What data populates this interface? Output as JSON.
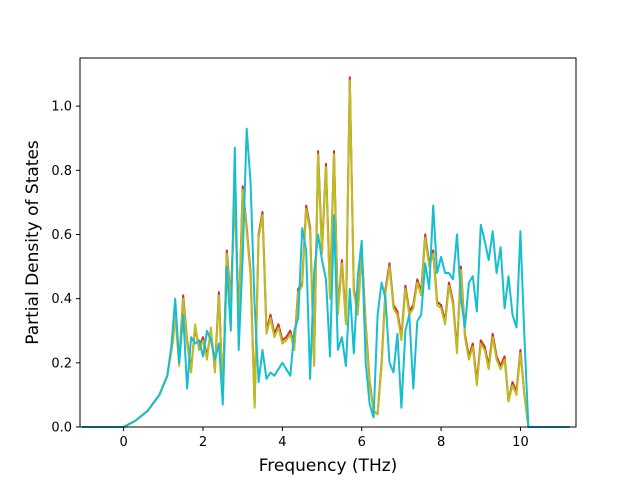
{
  "chart_data": {
    "type": "line",
    "title": "",
    "xlabel": "Frequency (THz)",
    "ylabel": "Partial Density of States",
    "xlim": [
      -1.1,
      11.4
    ],
    "ylim": [
      0.0,
      1.15
    ],
    "xticks": [
      0,
      2,
      4,
      6,
      8,
      10
    ],
    "xtick_labels": [
      "0",
      "2",
      "4",
      "6",
      "8",
      "10"
    ],
    "yticks": [
      0.0,
      0.2,
      0.4,
      0.6,
      0.8,
      1.0
    ],
    "ytick_labels": [
      "0.0",
      "0.2",
      "0.4",
      "0.6",
      "0.8",
      "1.0"
    ],
    "grid": false,
    "legend": "none",
    "series": [
      {
        "color": "#d62728",
        "x": [
          -1.05,
          0.0,
          0.3,
          0.6,
          0.9,
          1.1,
          1.25,
          1.3,
          1.4,
          1.5,
          1.6,
          1.7,
          1.8,
          1.9,
          2.0,
          2.1,
          2.2,
          2.3,
          2.4,
          2.5,
          2.6,
          2.7,
          2.8,
          2.9,
          3.0,
          3.1,
          3.2,
          3.3,
          3.4,
          3.5,
          3.6,
          3.7,
          3.8,
          3.9,
          4.0,
          4.1,
          4.2,
          4.3,
          4.4,
          4.5,
          4.6,
          4.7,
          4.8,
          4.9,
          5.0,
          5.1,
          5.2,
          5.3,
          5.4,
          5.5,
          5.6,
          5.65,
          5.7,
          5.8,
          5.9,
          6.0,
          6.1,
          6.2,
          6.3,
          6.4,
          6.5,
          6.6,
          6.7,
          6.8,
          6.9,
          7.0,
          7.1,
          7.2,
          7.3,
          7.4,
          7.5,
          7.6,
          7.7,
          7.8,
          7.9,
          8.0,
          8.1,
          8.2,
          8.3,
          8.4,
          8.5,
          8.6,
          8.7,
          8.8,
          8.9,
          9.0,
          9.1,
          9.2,
          9.3,
          9.4,
          9.5,
          9.6,
          9.7,
          9.8,
          9.9,
          10.0,
          10.1,
          10.2,
          11.25
        ],
        "y": [
          0.0,
          0.0,
          0.02,
          0.05,
          0.1,
          0.16,
          0.28,
          0.36,
          0.2,
          0.41,
          0.27,
          0.18,
          0.31,
          0.25,
          0.28,
          0.22,
          0.3,
          0.18,
          0.42,
          0.1,
          0.55,
          0.4,
          0.73,
          0.33,
          0.75,
          0.62,
          0.48,
          0.07,
          0.6,
          0.67,
          0.3,
          0.35,
          0.29,
          0.32,
          0.27,
          0.28,
          0.3,
          0.25,
          0.43,
          0.45,
          0.69,
          0.62,
          0.2,
          0.86,
          0.55,
          0.82,
          0.41,
          0.86,
          0.36,
          0.52,
          0.33,
          0.7,
          1.09,
          0.43,
          0.36,
          0.55,
          0.32,
          0.14,
          0.05,
          0.04,
          0.2,
          0.43,
          0.51,
          0.38,
          0.36,
          0.28,
          0.44,
          0.36,
          0.38,
          0.46,
          0.42,
          0.6,
          0.51,
          0.55,
          0.39,
          0.38,
          0.33,
          0.45,
          0.39,
          0.24,
          0.5,
          0.29,
          0.22,
          0.26,
          0.14,
          0.27,
          0.25,
          0.19,
          0.29,
          0.22,
          0.19,
          0.22,
          0.08,
          0.14,
          0.11,
          0.24,
          0.1,
          0.0,
          0.0
        ]
      },
      {
        "color": "#bcbd22",
        "x": [
          -1.05,
          0.0,
          0.3,
          0.6,
          0.9,
          1.1,
          1.25,
          1.3,
          1.4,
          1.5,
          1.6,
          1.7,
          1.8,
          1.9,
          2.0,
          2.1,
          2.2,
          2.3,
          2.4,
          2.5,
          2.6,
          2.7,
          2.8,
          2.9,
          3.0,
          3.1,
          3.2,
          3.3,
          3.4,
          3.5,
          3.6,
          3.7,
          3.8,
          3.9,
          4.0,
          4.1,
          4.2,
          4.3,
          4.4,
          4.5,
          4.6,
          4.7,
          4.8,
          4.9,
          5.0,
          5.1,
          5.2,
          5.3,
          5.4,
          5.5,
          5.6,
          5.65,
          5.7,
          5.8,
          5.9,
          6.0,
          6.1,
          6.2,
          6.3,
          6.4,
          6.5,
          6.6,
          6.7,
          6.8,
          6.9,
          7.0,
          7.1,
          7.2,
          7.3,
          7.4,
          7.5,
          7.6,
          7.7,
          7.8,
          7.9,
          8.0,
          8.1,
          8.2,
          8.3,
          8.4,
          8.5,
          8.6,
          8.7,
          8.8,
          8.9,
          9.0,
          9.1,
          9.2,
          9.3,
          9.4,
          9.5,
          9.6,
          9.7,
          9.8,
          9.9,
          10.0,
          10.1,
          10.2,
          11.25
        ],
        "y": [
          0.0,
          0.0,
          0.02,
          0.05,
          0.1,
          0.16,
          0.27,
          0.35,
          0.19,
          0.4,
          0.26,
          0.17,
          0.32,
          0.24,
          0.27,
          0.21,
          0.31,
          0.17,
          0.41,
          0.1,
          0.54,
          0.39,
          0.72,
          0.32,
          0.74,
          0.61,
          0.47,
          0.06,
          0.59,
          0.66,
          0.29,
          0.34,
          0.28,
          0.31,
          0.26,
          0.27,
          0.29,
          0.24,
          0.42,
          0.44,
          0.68,
          0.61,
          0.19,
          0.85,
          0.54,
          0.81,
          0.4,
          0.85,
          0.35,
          0.51,
          0.32,
          0.69,
          1.08,
          0.42,
          0.35,
          0.54,
          0.31,
          0.13,
          0.05,
          0.04,
          0.19,
          0.42,
          0.5,
          0.37,
          0.35,
          0.27,
          0.43,
          0.35,
          0.37,
          0.45,
          0.41,
          0.59,
          0.5,
          0.54,
          0.38,
          0.37,
          0.32,
          0.44,
          0.38,
          0.23,
          0.49,
          0.28,
          0.21,
          0.25,
          0.13,
          0.26,
          0.24,
          0.18,
          0.28,
          0.21,
          0.18,
          0.21,
          0.08,
          0.13,
          0.1,
          0.23,
          0.1,
          0.0,
          0.0
        ]
      },
      {
        "color": "#17becf",
        "x": [
          -1.05,
          0.0,
          0.3,
          0.6,
          0.9,
          1.1,
          1.2,
          1.3,
          1.4,
          1.5,
          1.6,
          1.7,
          1.8,
          1.9,
          2.0,
          2.1,
          2.2,
          2.3,
          2.4,
          2.5,
          2.6,
          2.7,
          2.8,
          2.9,
          3.0,
          3.1,
          3.2,
          3.3,
          3.4,
          3.5,
          3.6,
          3.7,
          3.8,
          3.9,
          4.0,
          4.1,
          4.2,
          4.3,
          4.4,
          4.5,
          4.6,
          4.7,
          4.8,
          4.9,
          5.0,
          5.1,
          5.2,
          5.3,
          5.4,
          5.5,
          5.6,
          5.7,
          5.8,
          5.9,
          6.0,
          6.1,
          6.2,
          6.3,
          6.4,
          6.5,
          6.6,
          6.7,
          6.8,
          6.9,
          7.0,
          7.1,
          7.2,
          7.3,
          7.4,
          7.5,
          7.6,
          7.7,
          7.8,
          7.9,
          8.0,
          8.1,
          8.2,
          8.3,
          8.4,
          8.5,
          8.6,
          8.7,
          8.8,
          8.9,
          9.0,
          9.1,
          9.2,
          9.3,
          9.4,
          9.5,
          9.6,
          9.7,
          9.8,
          9.9,
          10.0,
          10.1,
          10.2,
          11.25
        ],
        "y": [
          0.0,
          0.0,
          0.02,
          0.05,
          0.1,
          0.16,
          0.25,
          0.4,
          0.2,
          0.35,
          0.12,
          0.28,
          0.26,
          0.27,
          0.22,
          0.3,
          0.27,
          0.21,
          0.26,
          0.07,
          0.5,
          0.3,
          0.87,
          0.24,
          0.53,
          0.93,
          0.76,
          0.38,
          0.14,
          0.24,
          0.15,
          0.17,
          0.16,
          0.18,
          0.2,
          0.18,
          0.16,
          0.3,
          0.34,
          0.62,
          0.55,
          0.15,
          0.48,
          0.6,
          0.52,
          0.46,
          0.22,
          0.66,
          0.24,
          0.28,
          0.19,
          0.43,
          0.23,
          0.47,
          0.58,
          0.2,
          0.07,
          0.03,
          0.35,
          0.45,
          0.4,
          0.2,
          0.17,
          0.29,
          0.06,
          0.3,
          0.35,
          0.12,
          0.33,
          0.35,
          0.51,
          0.43,
          0.69,
          0.48,
          0.53,
          0.48,
          0.48,
          0.46,
          0.6,
          0.4,
          0.31,
          0.45,
          0.47,
          0.36,
          0.63,
          0.58,
          0.52,
          0.61,
          0.48,
          0.56,
          0.37,
          0.47,
          0.35,
          0.31,
          0.61,
          0.28,
          0.0,
          0.0
        ]
      }
    ]
  }
}
